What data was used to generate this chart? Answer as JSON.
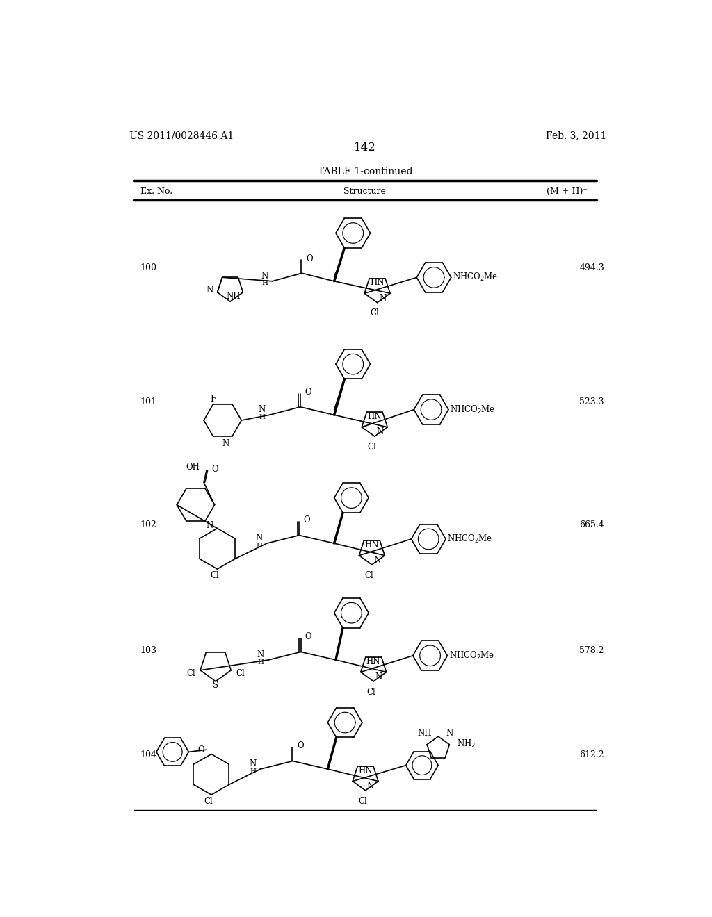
{
  "background_color": "#ffffff",
  "page_number": "142",
  "patent_number": "US 2011/0028446 A1",
  "patent_date": "Feb. 3, 2011",
  "table_title": "TABLE 1-continued",
  "col_ex": "Ex. No.",
  "col_struct": "Structure",
  "col_mh": "(M + H)⁺",
  "entries": [
    {
      "ex_no": "100",
      "mh": "494.3"
    },
    {
      "ex_no": "101",
      "mh": "523.3"
    },
    {
      "ex_no": "102",
      "mh": "665.4"
    },
    {
      "ex_no": "103",
      "mh": "578.2"
    },
    {
      "ex_no": "104",
      "mh": "612.2"
    }
  ]
}
